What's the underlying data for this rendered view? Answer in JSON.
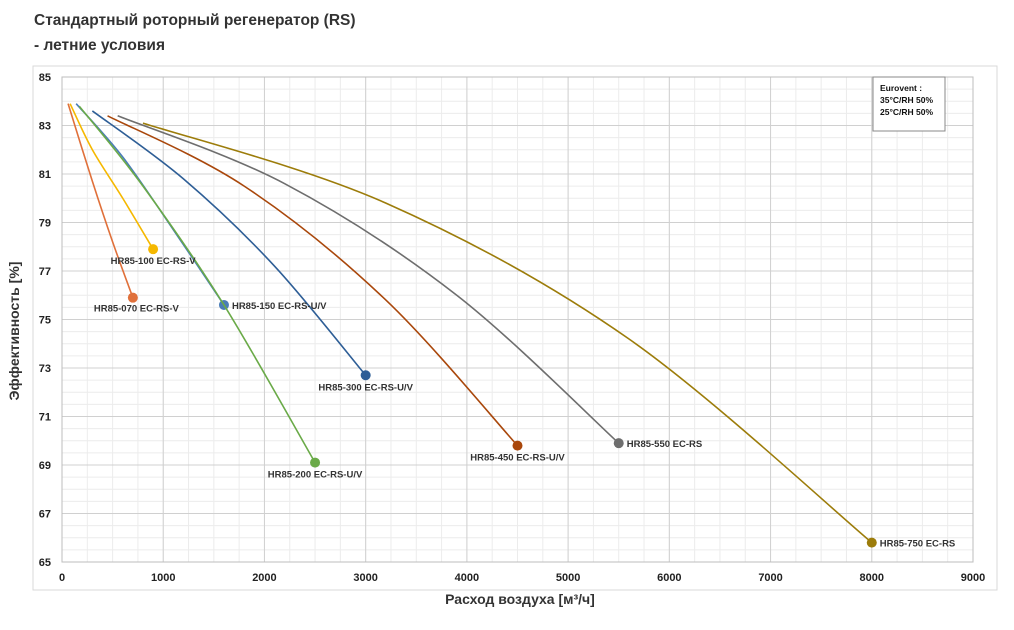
{
  "header": {
    "title": "Стандартный роторный регенератор (RS)",
    "subtitle": " - летние условия"
  },
  "legend": {
    "lines": [
      "Eurovent :",
      "35°C/RH 50%",
      "25°C/RH 50%"
    ]
  },
  "chart_data": {
    "type": "line",
    "xlabel": "Расход воздуха [м³/ч]",
    "ylabel": "Эффективность [%]",
    "xlim": [
      0,
      9000
    ],
    "ylim": [
      65,
      85
    ],
    "xticks": [
      0,
      1000,
      2000,
      3000,
      4000,
      5000,
      6000,
      7000,
      8000,
      9000
    ],
    "yticks": [
      65,
      67,
      69,
      71,
      73,
      75,
      77,
      79,
      81,
      83,
      85
    ],
    "grid": true,
    "series": [
      {
        "name": "HR85-070 EC-RS-V",
        "color": "#E0703A",
        "label_pos": "left",
        "x": [
          60,
          300,
          500,
          700
        ],
        "y": [
          83.9,
          80.7,
          78.2,
          75.9
        ]
      },
      {
        "name": "HR85-100 EC-RS-V",
        "color": "#F5B800",
        "label_pos": "below",
        "x": [
          80,
          300,
          600,
          900
        ],
        "y": [
          83.9,
          82.0,
          80.0,
          77.9
        ]
      },
      {
        "name": "HR85-150 EC-RS-U/V",
        "color": "#4A7DB8",
        "label_pos": "right",
        "x": [
          140,
          600,
          1100,
          1600
        ],
        "y": [
          83.9,
          81.7,
          78.7,
          75.6
        ]
      },
      {
        "name": "HR85-200 EC-RS-U/V",
        "color": "#6AAA48",
        "label_pos": "below",
        "x": [
          170,
          800,
          1600,
          2500
        ],
        "y": [
          83.8,
          80.5,
          75.6,
          69.1
        ]
      },
      {
        "name": "HR85-300 EC-RS-U/V",
        "color": "#2E5E96",
        "label_pos": "below",
        "x": [
          300,
          1200,
          2100,
          3000
        ],
        "y": [
          83.6,
          80.8,
          77.2,
          72.7
        ]
      },
      {
        "name": "HR85-450 EC-RS-U/V",
        "color": "#A9470B",
        "label_pos": "below",
        "x": [
          450,
          1800,
          3200,
          4500
        ],
        "y": [
          83.4,
          80.5,
          75.8,
          69.8
        ]
      },
      {
        "name": "HR85-550 EC-RS",
        "color": "#6E6E6E",
        "label_pos": "right",
        "x": [
          550,
          2200,
          3900,
          5500
        ],
        "y": [
          83.4,
          80.6,
          76.0,
          69.9
        ]
      },
      {
        "name": "HR85-750 EC-RS",
        "color": "#9C7C0A",
        "label_pos": "right",
        "x": [
          800,
          3200,
          5600,
          8000
        ],
        "y": [
          83.1,
          79.8,
          74.2,
          65.8
        ]
      }
    ]
  }
}
